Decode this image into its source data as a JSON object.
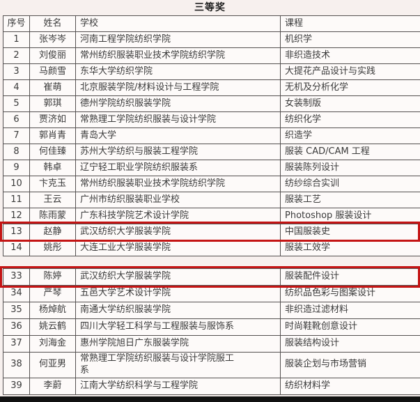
{
  "title": "三等奖",
  "columns": [
    "序号",
    "姓名",
    "学校",
    "课程"
  ],
  "sections": [
    {
      "name": "rows-1-14",
      "rows": [
        {
          "no": "1",
          "name": "张岑岑",
          "school": "河南工程学院纺织学院",
          "course": "机织学"
        },
        {
          "no": "2",
          "name": "刘俊丽",
          "school": "常州纺织服装职业技术学院纺织学院",
          "course": "非织造技术"
        },
        {
          "no": "3",
          "name": "马颜雪",
          "school": "东华大学纺织学院",
          "course": "大提花产品设计与实践"
        },
        {
          "no": "4",
          "name": "崔萌",
          "school": "北京服装学院/材料设计与工程学院",
          "course": "无机及分析化学"
        },
        {
          "no": "5",
          "name": "郭琪",
          "school": "德州学院纺织服装学院",
          "course": "女装制版"
        },
        {
          "no": "6",
          "name": "贾济如",
          "school": "常熟理工学院纺织服装与设计学院",
          "course": "纺织化学"
        },
        {
          "no": "7",
          "name": "郭肖青",
          "school": "青岛大学",
          "course": "织造学"
        },
        {
          "no": "8",
          "name": "何佳臻",
          "school": "苏州大学纺织与服装工程学院",
          "course": "服装 CAD/CAM 工程"
        },
        {
          "no": "9",
          "name": "韩卓",
          "school": "辽宁轻工职业学院纺织服装系",
          "course": "服装陈列设计"
        },
        {
          "no": "10",
          "name": "卞克玉",
          "school": "常州纺织服装职业技术学院纺织学院",
          "course": "纺纱综合实训"
        },
        {
          "no": "11",
          "name": "王云",
          "school": "广州市纺织服装职业学校",
          "course": "服装工艺"
        },
        {
          "no": "12",
          "name": "陈雨蒙",
          "school": "广东科技学院艺术设计学院",
          "course": "Photoshop 服装设计"
        },
        {
          "no": "13",
          "name": "赵静",
          "school": "武汉纺织大学服装学院",
          "course": "中国服装史",
          "highlighted": true
        },
        {
          "no": "14",
          "name": "姚彤",
          "school": "大连工业大学服装学院",
          "course": "服装工效学"
        }
      ]
    },
    {
      "name": "rows-33-39",
      "rows": [
        {
          "no": "33",
          "name": "陈婷",
          "school": "武汉纺织大学服装学院",
          "course": "服装配件设计",
          "highlighted": true
        },
        {
          "no": "34",
          "name": "严琴",
          "school": "五邑大学艺术设计学院",
          "course": "纺织品色彩与图案设计"
        },
        {
          "no": "35",
          "name": "杨焯航",
          "school": "南通大学纺织服装学院",
          "course": "非织造过滤材料"
        },
        {
          "no": "36",
          "name": "姚云鹤",
          "school": "四川大学轻工科学与工程服装与服饰系",
          "course": "时尚鞋靴创意设计"
        },
        {
          "no": "37",
          "name": "刘海金",
          "school": "惠州学院旭日广东服装学院",
          "course": "服装结构设计"
        },
        {
          "no": "38",
          "name": "何亚男",
          "school": "常熟理工学院纺织服装与设计学院服工\n系",
          "course": "服装企划与市场营销"
        },
        {
          "no": "39",
          "name": "李蔚",
          "school": "江南大学纺织科学与工程学院",
          "course": "纺织材料学"
        }
      ]
    }
  ],
  "highlights": [
    {
      "row_no": "13",
      "description": "red-box-around-row-13"
    },
    {
      "row_no": "33",
      "description": "red-box-around-row-33"
    }
  ],
  "colors": {
    "highlight_red": "#c41414",
    "border": "#545050",
    "text": "#3a3a3a",
    "background": "#f7f0ee"
  }
}
